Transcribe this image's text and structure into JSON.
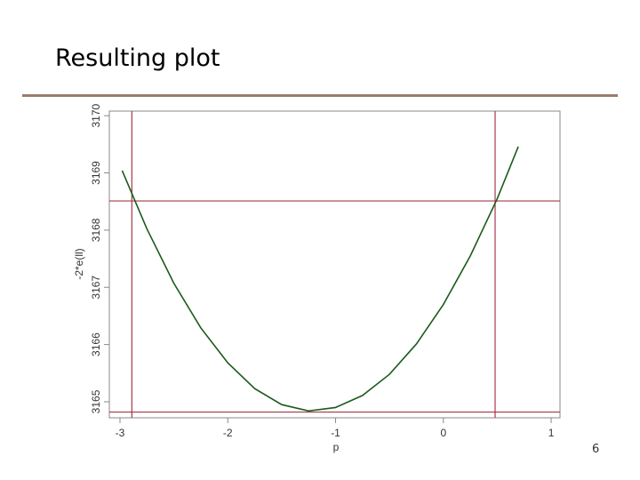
{
  "slide_title": "Resulting plot",
  "page_number": "6",
  "chart_data": {
    "type": "line",
    "x_label": "p",
    "y_label": "-2*e(ll)",
    "x": [
      -2.98,
      -2.75,
      -2.5,
      -2.25,
      -2,
      -1.75,
      -1.5,
      -1.25,
      -1,
      -0.75,
      -0.5,
      -0.25,
      0,
      0.25,
      0.5,
      0.695
    ],
    "series": [
      {
        "color": "#1a5c1a",
        "values": [
          3169.04,
          3168.02,
          3167.07,
          3166.29,
          3165.68,
          3165.23,
          3164.95,
          3164.84,
          3164.9,
          3165.11,
          3165.48,
          3166.01,
          3166.7,
          3167.55,
          3168.55,
          3169.46
        ]
      }
    ],
    "xlim": [
      -3.099,
      1.082
    ],
    "ylim": [
      3164.72,
      3170.08
    ],
    "xticks": [
      -3,
      -2,
      -1,
      0,
      1
    ],
    "yticks": [
      3165,
      3166,
      3167,
      3168,
      3169,
      3170
    ],
    "reference_lines": {
      "color": "#a33a4a",
      "x": [
        -2.89,
        0.48
      ],
      "y": [
        3168.51,
        3164.82
      ]
    }
  }
}
